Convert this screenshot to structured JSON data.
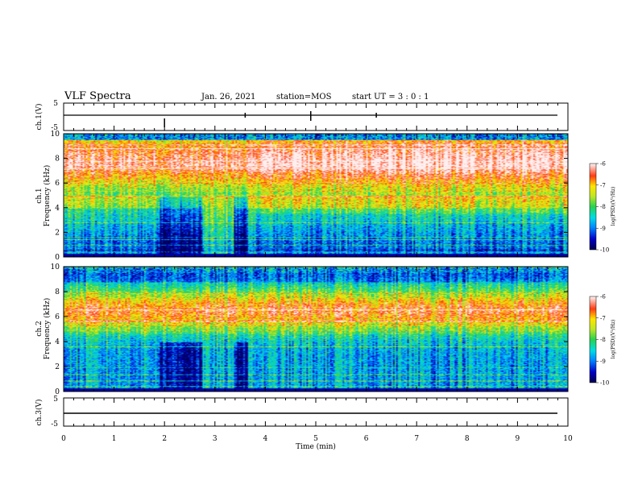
{
  "header": {
    "title": "VLF Spectra",
    "date": "Jan. 26, 2021",
    "station": "station=MOS",
    "start": "start UT = 3 : 0 : 1"
  },
  "chart_data": [
    {
      "type": "line",
      "panel": "ch.1(V)",
      "ylabel": "ch.1(V)",
      "ylim": [
        -5,
        5
      ],
      "yticks": [
        "5",
        "-5"
      ],
      "xlim": [
        0,
        10
      ],
      "series": [
        {
          "x": [
            0,
            9.8
          ],
          "y": [
            0,
            0
          ]
        }
      ]
    },
    {
      "type": "heatmap",
      "panel": "ch.1",
      "ylabel": "ch.1\nFrequency (kHz)",
      "ylim": [
        0,
        10
      ],
      "yticks": [
        "0",
        "2",
        "4",
        "6",
        "8",
        "10"
      ],
      "xlim": [
        0,
        10
      ],
      "color_scale": {
        "label": "log(PSD)(V²/Hz)",
        "min": -10,
        "max": -6,
        "ticks": [
          "-6",
          "-7",
          "-8",
          "-9",
          "-10"
        ]
      }
    },
    {
      "type": "heatmap",
      "panel": "ch.2",
      "ylabel": "ch.2\nFrequency (kHz)",
      "ylim": [
        0,
        10
      ],
      "yticks": [
        "0",
        "2",
        "4",
        "6",
        "8",
        "10"
      ],
      "xlim": [
        0,
        10
      ],
      "color_scale": {
        "label": "log(PSD)(V²/Hz)",
        "min": -10,
        "max": -6,
        "ticks": [
          "-6",
          "-7",
          "-8",
          "-9",
          "-10"
        ]
      }
    },
    {
      "type": "line",
      "panel": "ch.3(V)",
      "ylabel": "ch.3(V)",
      "ylim": [
        -5,
        5
      ],
      "yticks": [
        "5",
        "-5"
      ],
      "xlim": [
        0,
        10
      ],
      "xlabel": "Time (min)",
      "xticks": [
        "0",
        "1",
        "2",
        "3",
        "4",
        "5",
        "6",
        "7",
        "8",
        "9",
        "10"
      ],
      "series": [
        {
          "x": [
            0,
            9.8
          ],
          "y": [
            0,
            0
          ]
        }
      ]
    }
  ]
}
